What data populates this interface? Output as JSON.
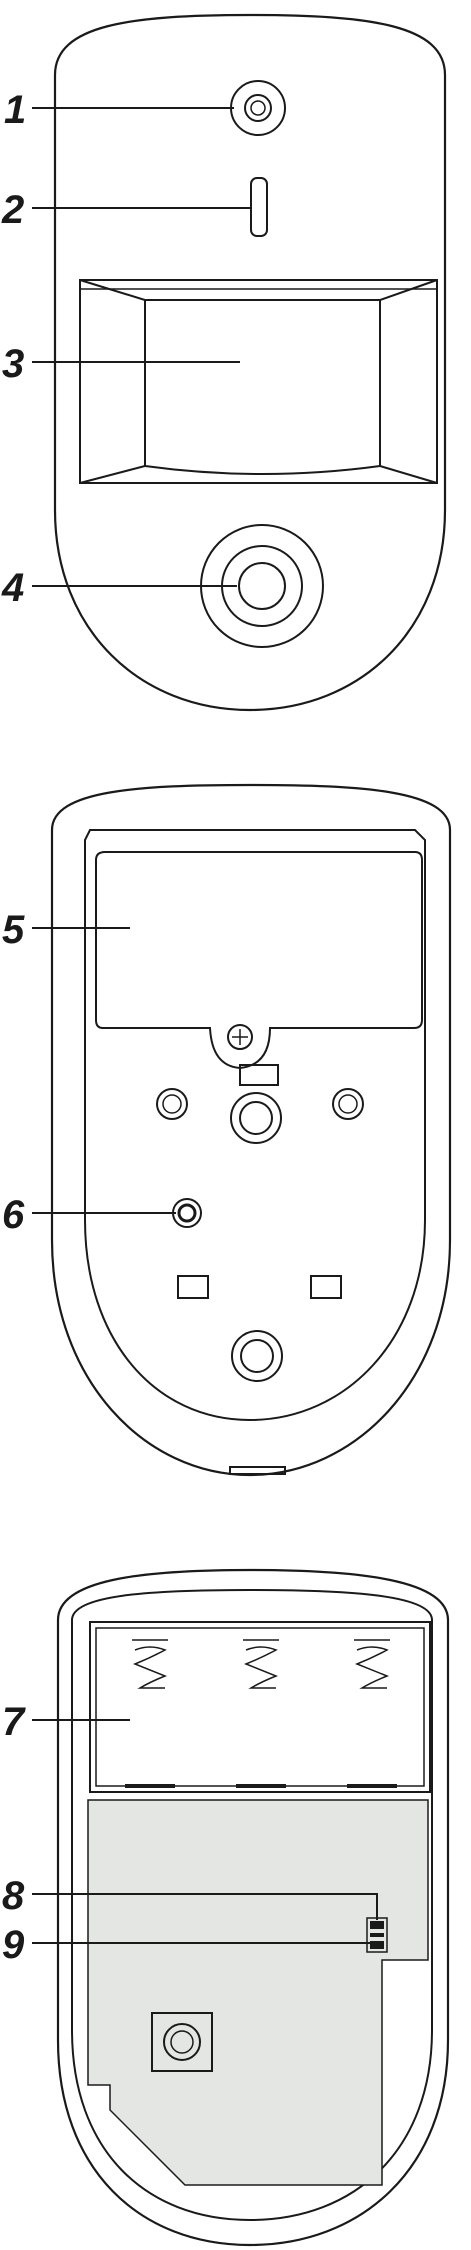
{
  "callouts": [
    {
      "id": "1",
      "label": "1"
    },
    {
      "id": "2",
      "label": "2"
    },
    {
      "id": "3",
      "label": "3"
    },
    {
      "id": "4",
      "label": "4"
    },
    {
      "id": "5",
      "label": "5"
    },
    {
      "id": "6",
      "label": "6"
    },
    {
      "id": "7",
      "label": "7"
    },
    {
      "id": "8",
      "label": "8"
    },
    {
      "id": "9",
      "label": "9"
    }
  ],
  "colors": {
    "line": "#1a1a1a",
    "background": "#ffffff",
    "board": "#e4e6e4"
  }
}
